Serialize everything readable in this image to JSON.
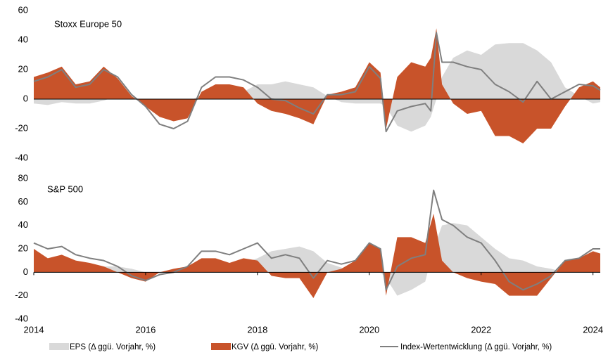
{
  "chart_data": [
    {
      "type": "combo",
      "title": "Stoxx Europe 50",
      "x": [
        2014.0,
        2014.25,
        2014.5,
        2014.75,
        2015.0,
        2015.25,
        2015.5,
        2015.75,
        2016.0,
        2016.25,
        2016.5,
        2016.75,
        2017.0,
        2017.25,
        2017.5,
        2017.75,
        2018.0,
        2018.25,
        2018.5,
        2018.75,
        2019.0,
        2019.25,
        2019.5,
        2019.75,
        2020.0,
        2020.2,
        2020.3,
        2020.5,
        2020.75,
        2021.0,
        2021.1,
        2021.2,
        2021.3,
        2021.5,
        2021.75,
        2022.0,
        2022.25,
        2022.5,
        2022.75,
        2023.0,
        2023.25,
        2023.5,
        2023.75,
        2024.0,
        2024.13
      ],
      "series": [
        {
          "name": "EPS (Δ ggü. Vorjahr, %)",
          "kind": "area",
          "color": "#d9d9d9",
          "values": [
            -3,
            -4,
            -2,
            -3,
            -3,
            -1,
            2,
            2,
            -3,
            -5,
            -5,
            -2,
            3,
            6,
            8,
            5,
            10,
            10,
            12,
            10,
            8,
            2,
            -2,
            -3,
            -3,
            -3,
            -5,
            -18,
            -22,
            -18,
            -12,
            0,
            15,
            28,
            33,
            30,
            37,
            38,
            38,
            33,
            25,
            8,
            2,
            -3,
            -2
          ]
        },
        {
          "name": "KGV (Δ ggü. Vorjahr, %)",
          "kind": "area",
          "color": "#c8532a",
          "values": [
            15,
            18,
            22,
            10,
            12,
            22,
            14,
            2,
            -5,
            -12,
            -15,
            -13,
            5,
            10,
            10,
            8,
            -3,
            -8,
            -10,
            -13,
            -17,
            3,
            5,
            8,
            25,
            18,
            -20,
            15,
            25,
            22,
            28,
            48,
            10,
            -3,
            -10,
            -8,
            -25,
            -25,
            -30,
            -20,
            -20,
            -5,
            8,
            12,
            8
          ]
        },
        {
          "name": "Index-Wertentwicklung (Δ ggü. Vorjahr, %)",
          "kind": "line",
          "color": "#7f7f7f",
          "values": [
            12,
            15,
            20,
            8,
            10,
            20,
            15,
            3,
            -5,
            -17,
            -20,
            -15,
            8,
            15,
            15,
            13,
            8,
            0,
            -1,
            -6,
            -10,
            3,
            3,
            5,
            22,
            14,
            -22,
            -8,
            -5,
            -3,
            -8,
            45,
            25,
            25,
            22,
            20,
            10,
            5,
            -2,
            12,
            0,
            5,
            10,
            9,
            6
          ]
        }
      ],
      "xlim": [
        2014,
        2024.13
      ],
      "ylim": [
        -40,
        60
      ],
      "yticks": [
        -40,
        -20,
        0,
        20,
        40,
        60
      ]
    },
    {
      "type": "combo",
      "title": "S&P 500",
      "x": [
        2014.0,
        2014.25,
        2014.5,
        2014.75,
        2015.0,
        2015.25,
        2015.5,
        2015.75,
        2016.0,
        2016.25,
        2016.5,
        2016.75,
        2017.0,
        2017.25,
        2017.5,
        2017.75,
        2018.0,
        2018.25,
        2018.5,
        2018.75,
        2019.0,
        2019.25,
        2019.5,
        2019.75,
        2020.0,
        2020.2,
        2020.3,
        2020.5,
        2020.75,
        2021.0,
        2021.15,
        2021.3,
        2021.5,
        2021.75,
        2022.0,
        2022.25,
        2022.5,
        2022.75,
        2023.0,
        2023.25,
        2023.5,
        2023.75,
        2024.0,
        2024.13
      ],
      "series": [
        {
          "kind": "area",
          "color": "#d9d9d9",
          "values": [
            5,
            8,
            8,
            8,
            5,
            5,
            5,
            3,
            0,
            -1,
            0,
            2,
            5,
            6,
            8,
            8,
            12,
            18,
            20,
            22,
            18,
            8,
            4,
            0,
            2,
            0,
            -5,
            -20,
            -15,
            -8,
            20,
            40,
            42,
            40,
            30,
            20,
            12,
            10,
            5,
            3,
            0,
            2,
            5,
            6
          ]
        },
        {
          "kind": "area",
          "color": "#c8532a",
          "values": [
            20,
            12,
            15,
            10,
            8,
            5,
            0,
            -5,
            -8,
            0,
            3,
            5,
            12,
            12,
            8,
            12,
            10,
            -3,
            -5,
            -5,
            -22,
            0,
            3,
            10,
            25,
            20,
            -20,
            30,
            30,
            25,
            50,
            10,
            0,
            -5,
            -8,
            -10,
            -20,
            -20,
            -20,
            -5,
            10,
            12,
            18,
            16
          ]
        },
        {
          "kind": "line",
          "color": "#7f7f7f",
          "values": [
            25,
            20,
            22,
            15,
            12,
            10,
            5,
            -3,
            -7,
            -2,
            0,
            5,
            18,
            18,
            15,
            20,
            25,
            12,
            15,
            12,
            -5,
            10,
            7,
            10,
            25,
            20,
            -15,
            5,
            12,
            15,
            70,
            45,
            40,
            30,
            25,
            10,
            -8,
            -15,
            -10,
            -3,
            10,
            12,
            20,
            20
          ]
        }
      ],
      "xlim": [
        2014,
        2024.13
      ],
      "ylim": [
        -40,
        80
      ],
      "yticks": [
        -40,
        -20,
        0,
        20,
        40,
        60,
        80
      ],
      "xticks": [
        2014,
        2016,
        2018,
        2020,
        2022,
        2024
      ]
    }
  ]
}
